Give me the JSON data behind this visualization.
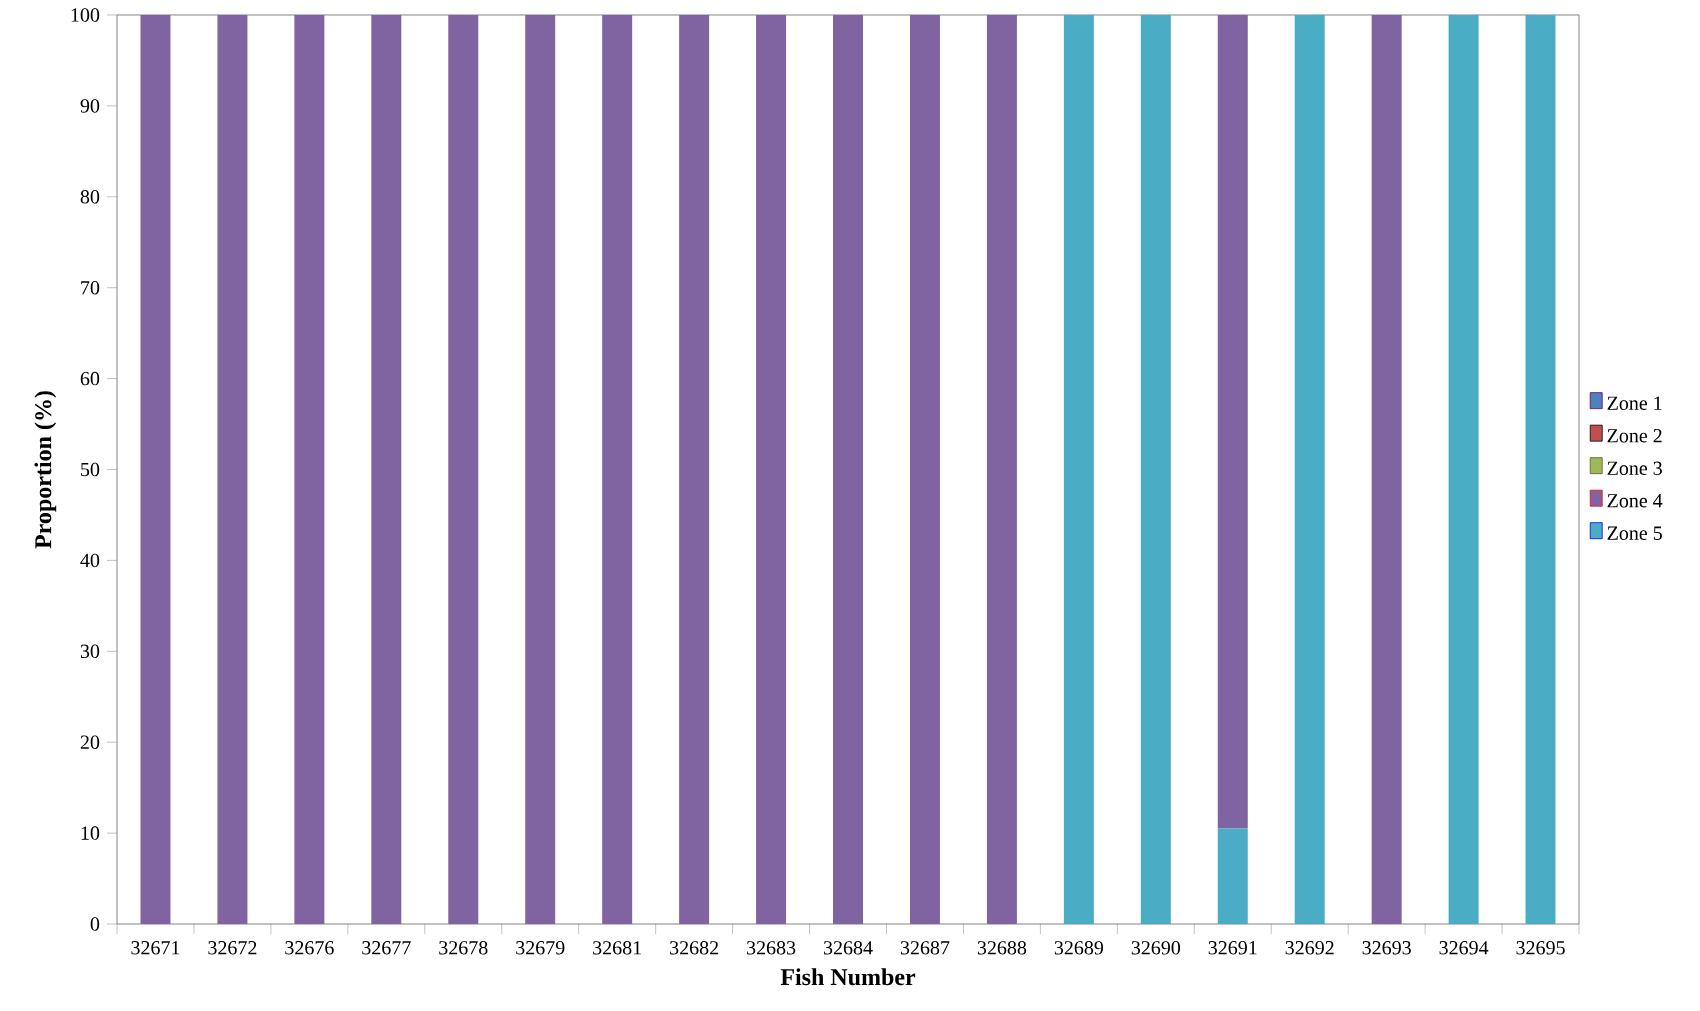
{
  "chart_data": {
    "type": "bar",
    "stacked": true,
    "xlabel": "Fish Number",
    "ylabel": "Proportion (%)",
    "categories": [
      "32671",
      "32672",
      "32676",
      "32677",
      "32678",
      "32679",
      "32681",
      "32682",
      "32683",
      "32684",
      "32687",
      "32688",
      "32689",
      "32690",
      "32691",
      "32692",
      "32693",
      "32694",
      "32695"
    ],
    "series": [
      {
        "name": "Zone 5",
        "color": "#4bacc6",
        "values": [
          0,
          0,
          0,
          0,
          0,
          0,
          0,
          0,
          0,
          0,
          0,
          0,
          100,
          100,
          10.5,
          100,
          0,
          100,
          100
        ]
      },
      {
        "name": "Zone 4",
        "color": "#8064a2",
        "values": [
          100,
          100,
          100,
          100,
          100,
          100,
          100,
          100,
          100,
          100,
          100,
          100,
          0,
          0,
          89.5,
          0,
          100,
          0,
          0
        ]
      },
      {
        "name": "Zone 3",
        "color": "#9bbb59",
        "values": [
          0,
          0,
          0,
          0,
          0,
          0,
          0,
          0,
          0,
          0,
          0,
          0,
          0,
          0,
          0,
          0,
          0,
          0,
          0
        ]
      },
      {
        "name": "Zone 2",
        "color": "#c0504d",
        "values": [
          0,
          0,
          0,
          0,
          0,
          0,
          0,
          0,
          0,
          0,
          0,
          0,
          0,
          0,
          0,
          0,
          0,
          0,
          0
        ]
      },
      {
        "name": "Zone 1",
        "color": "#4f81bd",
        "values": [
          0,
          0,
          0,
          0,
          0,
          0,
          0,
          0,
          0,
          0,
          0,
          0,
          0,
          0,
          0,
          0,
          0,
          0,
          0
        ]
      }
    ],
    "ylim": [
      0,
      100
    ],
    "yticks": [
      0,
      10,
      20,
      30,
      40,
      50,
      60,
      70,
      80,
      90,
      100
    ],
    "grid": false,
    "legend": "right"
  }
}
